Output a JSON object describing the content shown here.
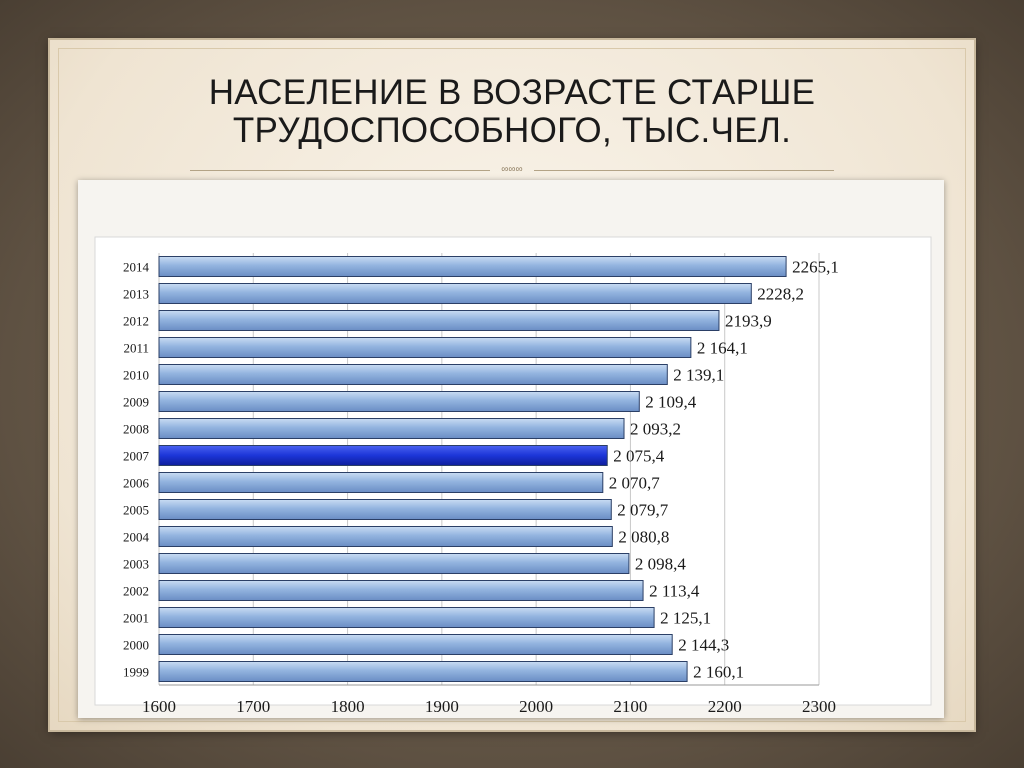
{
  "slide": {
    "title_line1": "НАСЕЛЕНИЕ В ВОЗРАСТЕ СТАРШЕ",
    "title_line2": "ТРУДОСПОСОБНОГО, ТЫС.ЧЕЛ."
  },
  "colors": {
    "bar": "#8fb0dc",
    "bar_highlight": "#1c35d8",
    "bar_edge": "#2b3f66",
    "grid": "#c8c8c8"
  },
  "chart_data": {
    "type": "bar",
    "orientation": "horizontal",
    "title": "",
    "xlabel": "",
    "ylabel": "",
    "xlim": [
      1600,
      2300
    ],
    "xticks": [
      1600,
      1700,
      1800,
      1900,
      2000,
      2100,
      2200,
      2300
    ],
    "grid": true,
    "highlight_category": "2007",
    "categories": [
      "2014",
      "2013",
      "2012",
      "2011",
      "2010",
      "2009",
      "2008",
      "2007",
      "2006",
      "2005",
      "2004",
      "2003",
      "2002",
      "2001",
      "2000",
      "1999"
    ],
    "values": [
      2265.1,
      2228.2,
      2193.9,
      2164.1,
      2139.1,
      2109.4,
      2093.2,
      2075.4,
      2070.7,
      2079.7,
      2080.8,
      2098.4,
      2113.4,
      2125.1,
      2144.3,
      2160.1
    ],
    "value_labels": [
      "2265,1",
      "2228,2",
      "2193,9",
      "2 164,1",
      "2 139,1",
      "2 109,4",
      "2 093,2",
      "2 075,4",
      "2 070,7",
      "2 079,7",
      "2 080,8",
      "2 098,4",
      "2 113,4",
      "2 125,1",
      "2 144,3",
      "2 160,1"
    ]
  }
}
